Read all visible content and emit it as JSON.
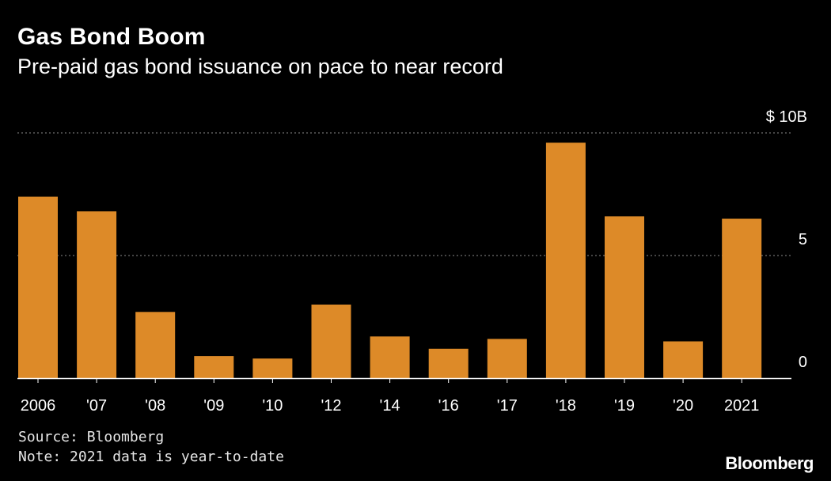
{
  "header": {
    "title": "Gas Bond Boom",
    "subtitle": "Pre-paid gas bond issuance on pace to near record"
  },
  "footer": {
    "source": "Source: Bloomberg",
    "note": "Note: 2021 data is year-to-date",
    "brand": "Bloomberg"
  },
  "colors": {
    "background": "#000000",
    "bar": "#dd8a28",
    "gridline": "#8a8a8a",
    "axis": "#ffffff",
    "text": "#ffffff"
  },
  "chart_data": {
    "type": "bar",
    "title": "Gas Bond Boom",
    "subtitle": "Pre-paid gas bond issuance on pace to near record",
    "xlabel": "",
    "ylabel": "",
    "categories": [
      "2006",
      "'07",
      "'08",
      "'09",
      "'10",
      "'12",
      "'14",
      "'16",
      "'17",
      "'18",
      "'19",
      "'20",
      "2021"
    ],
    "values": [
      7.4,
      6.8,
      2.7,
      0.9,
      0.8,
      3.0,
      1.7,
      1.2,
      1.6,
      9.6,
      6.6,
      1.5,
      6.5
    ],
    "unit": "$ billions",
    "ylim": [
      0,
      10
    ],
    "yticks": [
      {
        "value": 10,
        "label": "$ 10B"
      },
      {
        "value": 5,
        "label": "5"
      },
      {
        "value": 0,
        "label": "0"
      }
    ],
    "grid": true,
    "legend": "none"
  }
}
